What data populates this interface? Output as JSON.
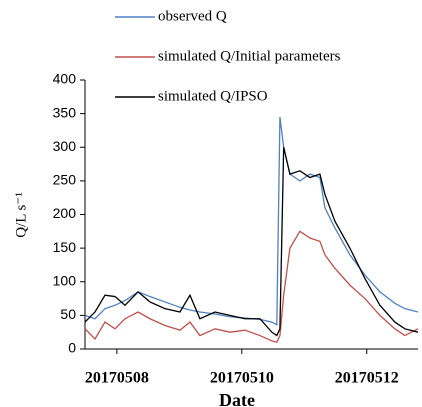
{
  "chart_data": {
    "type": "line",
    "x_label": "Date",
    "y_label": "Q/L s⁻¹",
    "x": [
      7.49,
      7.65,
      7.81,
      7.97,
      8.13,
      8.34,
      8.53,
      8.77,
      9.01,
      9.17,
      9.33,
      9.57,
      9.81,
      10.05,
      10.29,
      10.48,
      10.56,
      10.61,
      10.67,
      10.77,
      10.93,
      11.09,
      11.25,
      11.33,
      11.49,
      11.73,
      11.97,
      12.21,
      12.45,
      12.61,
      12.82
    ],
    "series": [
      {
        "name": "observed Q",
        "color": "#4f81c7",
        "values": [
          50,
          45,
          60,
          65,
          72,
          85,
          78,
          70,
          62,
          58,
          55,
          52,
          48,
          46,
          44,
          40,
          36,
          345,
          300,
          260,
          250,
          260,
          255,
          210,
          180,
          140,
          110,
          85,
          68,
          60,
          55
        ]
      },
      {
        "name": "simulated Q/Initial parameters",
        "color": "#c0504d",
        "values": [
          30,
          15,
          40,
          30,
          45,
          55,
          45,
          35,
          28,
          40,
          20,
          30,
          25,
          28,
          20,
          12,
          10,
          20,
          80,
          150,
          175,
          165,
          160,
          140,
          120,
          95,
          75,
          50,
          30,
          20,
          30
        ]
      },
      {
        "name": "simulated Q/IPSO",
        "color": "#000000",
        "values": [
          40,
          55,
          80,
          78,
          65,
          85,
          70,
          60,
          55,
          80,
          45,
          55,
          50,
          45,
          45,
          25,
          20,
          30,
          300,
          260,
          265,
          255,
          260,
          230,
          190,
          150,
          105,
          65,
          40,
          30,
          25
        ]
      }
    ],
    "xlim": [
      7.49,
      12.82
    ],
    "xticks": [
      {
        "value": 8,
        "label": "20170508"
      },
      {
        "value": 10,
        "label": "20170510"
      },
      {
        "value": 12,
        "label": "20170512"
      }
    ],
    "ylim": [
      0,
      400
    ],
    "yticks": [
      0,
      50,
      100,
      150,
      200,
      250,
      300,
      350,
      400
    ]
  }
}
